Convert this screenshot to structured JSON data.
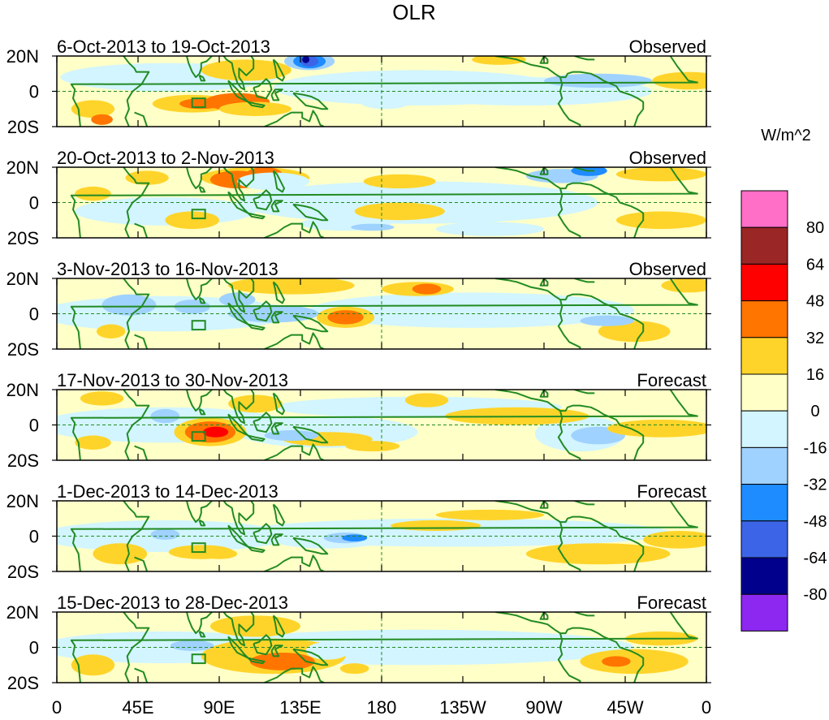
{
  "title": "OLR",
  "units": "W/m^2",
  "lat_labels": [
    "20N",
    "0",
    "20S"
  ],
  "lon_labels": [
    "0",
    "45E",
    "90E",
    "135E",
    "180",
    "135W",
    "90W",
    "45W",
    "0"
  ],
  "panels": [
    {
      "period": "6-Oct-2013 to 19-Oct-2013",
      "status": "Observed"
    },
    {
      "period": "20-Oct-2013 to 2-Nov-2013",
      "status": "Observed"
    },
    {
      "period": "3-Nov-2013 to 16-Nov-2013",
      "status": "Observed"
    },
    {
      "period": "17-Nov-2013 to 30-Nov-2013",
      "status": "Forecast"
    },
    {
      "period": "1-Dec-2013 to 14-Dec-2013",
      "status": "Forecast"
    },
    {
      "period": "15-Dec-2013 to 28-Dec-2013",
      "status": "Forecast"
    }
  ],
  "colorbar": {
    "colors": [
      "#ff6ec7",
      "#9b2626",
      "#ff0000",
      "#ff7500",
      "#ffd42a",
      "#ffffc8",
      "#d2f5ff",
      "#a0d2ff",
      "#1e8cff",
      "#3c64e6",
      "#00008c",
      "#8c28f0"
    ],
    "tick_labels": [
      "80",
      "64",
      "48",
      "32",
      "16",
      "0",
      "-16",
      "-32",
      "-48",
      "-64",
      "-80"
    ]
  },
  "colors": {
    "coast": "#228b22",
    "ref_line": "#228b22",
    "base": "#ffffc8"
  }
}
